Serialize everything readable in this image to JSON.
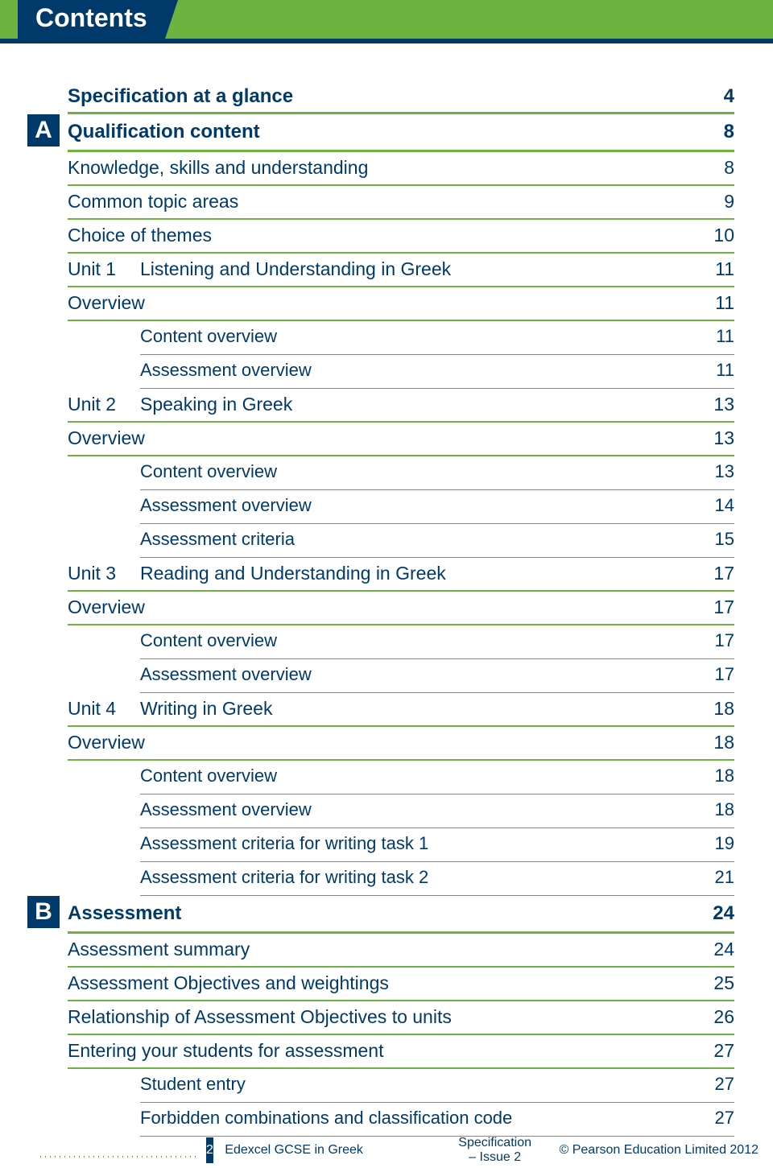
{
  "header": {
    "title": "Contents"
  },
  "colors": {
    "brand_navy": "#003a6a",
    "brand_green": "#6cb33f",
    "rule_grey": "#888888",
    "page_bg": "#ffffff"
  },
  "typography": {
    "heading_size_pt": 32,
    "lvl1_size_pt": 24,
    "lvl2_size_pt": 23,
    "lvl3_size_pt": 22,
    "footer_size_pt": 16,
    "font_family": "Segoe UI / Trebuchet-like humanist sans"
  },
  "toc": [
    {
      "marker": "",
      "unit": "",
      "label": "Specification at a glance",
      "page": "4",
      "level": 1
    },
    {
      "marker": "A",
      "unit": "",
      "label": "Qualification content",
      "page": "8",
      "level": 1
    },
    {
      "marker": "",
      "unit": "",
      "label": "Knowledge, skills and understanding",
      "page": "8",
      "level": 2
    },
    {
      "marker": "",
      "unit": "",
      "label": "Common topic areas",
      "page": "9",
      "level": 2
    },
    {
      "marker": "",
      "unit": "",
      "label": "Choice of themes",
      "page": "10",
      "level": 2
    },
    {
      "marker": "",
      "unit": "Unit 1",
      "label": "Listening and Understanding in Greek",
      "page": "11",
      "level": 2
    },
    {
      "marker": "",
      "unit": "",
      "label": "Overview",
      "page": "11",
      "level": 2
    },
    {
      "marker": "",
      "unit": "",
      "label": "Content overview",
      "page": "11",
      "level": 3
    },
    {
      "marker": "",
      "unit": "",
      "label": "Assessment overview",
      "page": "11",
      "level": 3
    },
    {
      "marker": "",
      "unit": "Unit 2",
      "label": "Speaking in Greek",
      "page": "13",
      "level": 2
    },
    {
      "marker": "",
      "unit": "",
      "label": "Overview",
      "page": "13",
      "level": 2
    },
    {
      "marker": "",
      "unit": "",
      "label": "Content overview",
      "page": "13",
      "level": 3
    },
    {
      "marker": "",
      "unit": "",
      "label": "Assessment overview",
      "page": "14",
      "level": 3
    },
    {
      "marker": "",
      "unit": "",
      "label": "Assessment criteria",
      "page": "15",
      "level": 3
    },
    {
      "marker": "",
      "unit": "Unit 3",
      "label": "Reading and Understanding in Greek",
      "page": "17",
      "level": 2
    },
    {
      "marker": "",
      "unit": "",
      "label": "Overview",
      "page": "17",
      "level": 2
    },
    {
      "marker": "",
      "unit": "",
      "label": "Content overview",
      "page": "17",
      "level": 3
    },
    {
      "marker": "",
      "unit": "",
      "label": "Assessment overview",
      "page": "17",
      "level": 3
    },
    {
      "marker": "",
      "unit": "Unit 4",
      "label": "Writing in Greek",
      "page": "18",
      "level": 2
    },
    {
      "marker": "",
      "unit": "",
      "label": "Overview",
      "page": "18",
      "level": 2
    },
    {
      "marker": "",
      "unit": "",
      "label": "Content overview",
      "page": "18",
      "level": 3
    },
    {
      "marker": "",
      "unit": "",
      "label": "Assessment overview",
      "page": "18",
      "level": 3
    },
    {
      "marker": "",
      "unit": "",
      "label": "Assessment criteria for writing task 1",
      "page": "19",
      "level": 3
    },
    {
      "marker": "",
      "unit": "",
      "label": "Assessment criteria for writing task 2",
      "page": "21",
      "level": 3
    },
    {
      "marker": "B",
      "unit": "",
      "label": "Assessment",
      "page": "24",
      "level": 1
    },
    {
      "marker": "",
      "unit": "",
      "label": "Assessment summary",
      "page": "24",
      "level": 2
    },
    {
      "marker": "",
      "unit": "",
      "label": "Assessment Objectives and weightings",
      "page": "25",
      "level": 2
    },
    {
      "marker": "",
      "unit": "",
      "label": "Relationship of Assessment Objectives to units",
      "page": "26",
      "level": 2
    },
    {
      "marker": "",
      "unit": "",
      "label": "Entering your students for assessment",
      "page": "27",
      "level": 2
    },
    {
      "marker": "",
      "unit": "",
      "label": "Student entry",
      "page": "27",
      "level": 3
    },
    {
      "marker": "",
      "unit": "",
      "label": "Forbidden combinations and classification code",
      "page": "27",
      "level": 3
    }
  ],
  "footer": {
    "page_number": "2",
    "left": "Edexcel GCSE in Greek",
    "mid": "Specification – Issue 2",
    "right": "© Pearson Education Limited 2012"
  }
}
